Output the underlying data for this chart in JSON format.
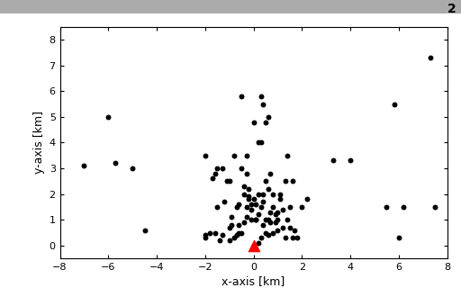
{
  "x_dots": [
    -0.3,
    0.3,
    -0.5,
    0.5,
    0.1,
    -0.1,
    0.6,
    -0.6,
    0.2,
    -0.2,
    0.4,
    -0.4,
    0.8,
    -0.8,
    0.7,
    -0.7,
    1.0,
    -1.0,
    0.9,
    -0.9,
    1.2,
    -1.2,
    1.1,
    -1.1,
    1.4,
    -1.4,
    1.3,
    -1.3,
    1.6,
    -1.6,
    1.5,
    -1.5,
    1.8,
    -1.8,
    0.5,
    -0.5,
    0.2,
    -0.3,
    0.3,
    0.0,
    -0.1,
    0.6,
    0.4,
    -0.4,
    0.8,
    0.9,
    -0.6,
    0.1,
    -0.2,
    1.0,
    -0.8,
    1.1,
    1.3,
    -1.0,
    0.5,
    0.7,
    -0.3,
    0.2,
    1.5,
    -1.3,
    1.7,
    2.0,
    -2.0,
    2.2,
    0.3,
    0.6,
    -0.5,
    0.4,
    1.4,
    -1.5,
    0.0,
    0.1,
    -0.1,
    0.2,
    -0.3,
    0.5,
    0.7,
    -0.7,
    1.0,
    -0.9,
    1.2,
    0.4,
    -0.4,
    0.6,
    -0.2,
    0.8,
    1.6,
    -1.6,
    0.3,
    -0.6,
    -7.0,
    -6.0,
    -5.7,
    -5.0,
    -4.5,
    5.5,
    5.8,
    7.3,
    4.0,
    3.3,
    6.0,
    6.2,
    7.5,
    -2.0,
    -2.0,
    -1.7,
    -1.0,
    0.0
  ],
  "y_dots": [
    1.5,
    1.5,
    0.5,
    0.5,
    1.0,
    1.0,
    1.0,
    0.5,
    2.0,
    2.2,
    0.8,
    0.9,
    0.5,
    0.3,
    1.3,
    0.4,
    0.6,
    0.7,
    0.9,
    1.1,
    1.4,
    1.7,
    1.8,
    2.5,
    1.0,
    0.2,
    0.3,
    0.4,
    0.3,
    0.5,
    0.7,
    1.5,
    0.3,
    0.5,
    2.5,
    3.0,
    0.1,
    2.8,
    4.0,
    4.8,
    1.6,
    0.4,
    2.0,
    2.3,
    2.0,
    1.2,
    1.6,
    1.0,
    1.9,
    1.3,
    3.5,
    2.0,
    2.5,
    2.5,
    4.8,
    2.8,
    3.5,
    4.0,
    1.5,
    3.0,
    0.6,
    1.5,
    0.3,
    1.8,
    5.8,
    5.0,
    5.8,
    5.5,
    3.5,
    3.0,
    1.8,
    1.6,
    1.4,
    1.2,
    1.1,
    1.0,
    0.9,
    1.5,
    1.0,
    0.8,
    0.7,
    1.7,
    2.0,
    2.2,
    1.8,
    1.5,
    2.5,
    2.8,
    0.3,
    0.8,
    3.1,
    5.0,
    3.2,
    3.0,
    0.6,
    1.5,
    5.5,
    7.3,
    3.3,
    3.3,
    0.3,
    1.5,
    1.5,
    0.4,
    3.5,
    2.6,
    0.2,
    0.0
  ],
  "triangle_x": 0.0,
  "triangle_y": 0.0,
  "xlim": [
    -8,
    8
  ],
  "ylim": [
    -0.5,
    8.5
  ],
  "xticks": [
    -8,
    -6,
    -4,
    -2,
    0,
    2,
    4,
    6,
    8
  ],
  "yticks": [
    0,
    1,
    2,
    3,
    4,
    5,
    6,
    7,
    8
  ],
  "xlabel": "x-axis [km]",
  "ylabel": "y-axis [km]",
  "dot_color": "#000000",
  "triangle_color": "#ff0000",
  "dot_size": 18,
  "triangle_size": 80,
  "figure_label": "2",
  "background_color": "#ffffff",
  "top_bar_color": "#aaaaaa",
  "figsize": [
    5.12,
    3.3
  ],
  "dpi": 100
}
